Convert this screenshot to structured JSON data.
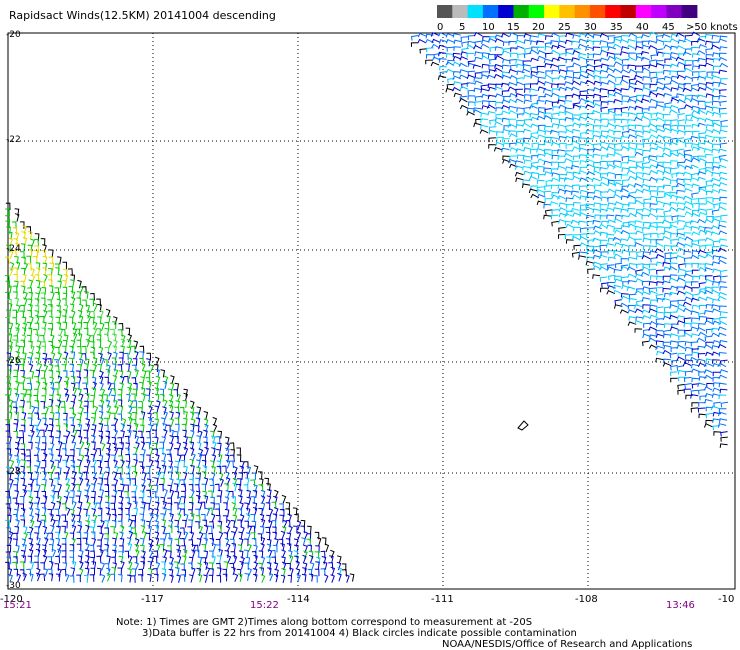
{
  "title": "Rapidsact Winds(12.5KM) 20141004 descending",
  "legend": {
    "ticks": [
      "0",
      "5",
      "10",
      "15",
      "20",
      "25",
      "30",
      "35",
      "40",
      "45",
      ">50 knots"
    ],
    "colors": [
      "#555555",
      "#bbbbbb",
      "#00e0ff",
      "#0070ff",
      "#0000d0",
      "#00b000",
      "#00ff00",
      "#ffff00",
      "#ffc000",
      "#ff9000",
      "#ff5000",
      "#ff0000",
      "#c00000",
      "#ff00ff",
      "#c000ff",
      "#8000c0",
      "#400080"
    ]
  },
  "lat_labels": [
    "-20",
    "-22",
    "-24",
    "-26",
    "-28",
    "-30"
  ],
  "lon_labels": [
    "-120",
    "-117",
    "-114",
    "-111",
    "-108",
    "-10"
  ],
  "time_labels": [
    "15:21",
    "15:22",
    "13:46"
  ],
  "notes": {
    "line1": "Note: 1) Times are GMT 2)Times along bottom correspond to measurement at -20S",
    "line2": "3)Data buffer is 22 hrs from 20141004 4) Black circles indicate possible contamination",
    "line3": "NOAA/NESDIS/Office of Research and Applications"
  }
}
